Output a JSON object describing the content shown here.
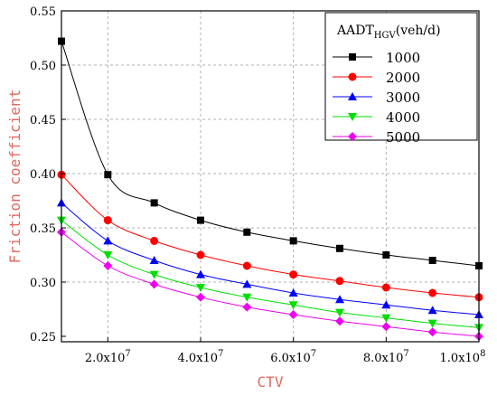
{
  "chart_data": {
    "type": "line",
    "xlabel": "CTV",
    "ylabel": "Friction coefficient",
    "xlim": [
      10000000,
      100000000
    ],
    "ylim": [
      0.245,
      0.55
    ],
    "x_ticks": [
      {
        "value": 20000000,
        "mantissa": "2.0x10",
        "exp": "7"
      },
      {
        "value": 40000000,
        "mantissa": "4.0x10",
        "exp": "7"
      },
      {
        "value": 60000000,
        "mantissa": "6.0x10",
        "exp": "7"
      },
      {
        "value": 80000000,
        "mantissa": "8.0x10",
        "exp": "7"
      },
      {
        "value": 100000000,
        "mantissa": "1.0x10",
        "exp": "8"
      }
    ],
    "y_ticks": [
      0.25,
      0.3,
      0.35,
      0.4,
      0.45,
      0.5,
      0.55
    ],
    "y_tick_labels": [
      "0.25",
      "0.30",
      "0.35",
      "0.40",
      "0.45",
      "0.50",
      "0.55"
    ],
    "grid": true,
    "legend": {
      "position": "top-right",
      "title_main": "AADT",
      "title_sub": "HGV",
      "title_unit": "(veh/d)"
    },
    "x": [
      10000000,
      20000000,
      30000000,
      40000000,
      50000000,
      60000000,
      70000000,
      80000000,
      90000000,
      100000000
    ],
    "series": [
      {
        "name": "1000",
        "color": "#000000",
        "marker": "square",
        "values": [
          0.522,
          0.399,
          0.373,
          0.357,
          0.346,
          0.338,
          0.331,
          0.325,
          0.32,
          0.315
        ]
      },
      {
        "name": "2000",
        "color": "#ff0000",
        "marker": "circle",
        "values": [
          0.399,
          0.357,
          0.338,
          0.325,
          0.315,
          0.307,
          0.301,
          0.295,
          0.29,
          0.286
        ]
      },
      {
        "name": "3000",
        "color": "#0000ff",
        "marker": "triangle-up",
        "values": [
          0.373,
          0.338,
          0.32,
          0.307,
          0.298,
          0.29,
          0.284,
          0.279,
          0.274,
          0.27
        ]
      },
      {
        "name": "4000",
        "color": "#00dd00",
        "marker": "triangle-down",
        "values": [
          0.357,
          0.325,
          0.307,
          0.295,
          0.286,
          0.279,
          0.272,
          0.267,
          0.262,
          0.258
        ]
      },
      {
        "name": "5000",
        "color": "#ee00ee",
        "marker": "diamond",
        "values": [
          0.346,
          0.315,
          0.298,
          0.286,
          0.277,
          0.27,
          0.264,
          0.259,
          0.254,
          0.25
        ]
      }
    ]
  }
}
